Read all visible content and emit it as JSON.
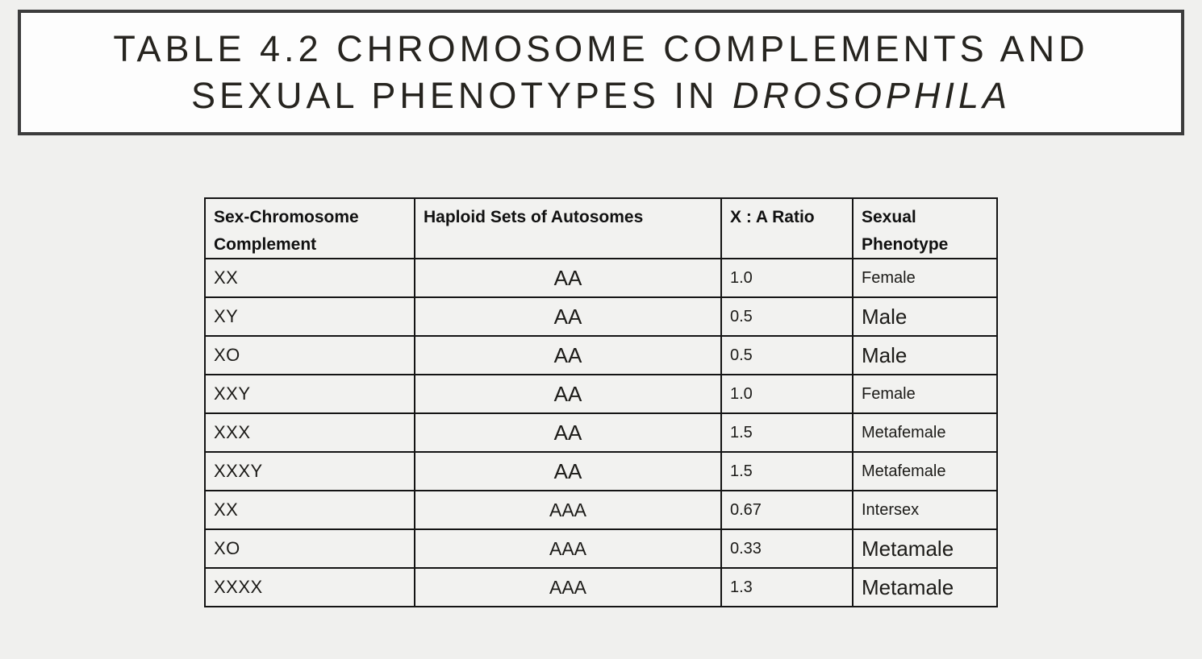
{
  "title": {
    "line1": "TABLE 4.2 CHROMOSOME COMPLEMENTS AND",
    "line2_prefix": "SEXUAL PHENOTYPES IN ",
    "line2_italic": "DROSOPHILA"
  },
  "table": {
    "headers": {
      "complement": "Sex-Chromosome Complement",
      "autosomes": "Haploid Sets of Autosomes",
      "ratio": "X : A Ratio",
      "phenotype": "Sexual Phenotype"
    },
    "rows": [
      {
        "complement": "XX",
        "autosomes": "AA",
        "ratio": "1.0",
        "phenotype": "Female"
      },
      {
        "complement": "XY",
        "autosomes": "AA",
        "ratio": "0.5",
        "phenotype": "Male"
      },
      {
        "complement": "XO",
        "autosomes": "AA",
        "ratio": "0.5",
        "phenotype": "Male"
      },
      {
        "complement": "XXY",
        "autosomes": "AA",
        "ratio": "1.0",
        "phenotype": "Female"
      },
      {
        "complement": "XXX",
        "autosomes": "AA",
        "ratio": "1.5",
        "phenotype": "Metafemale"
      },
      {
        "complement": "XXXY",
        "autosomes": "AA",
        "ratio": "1.5",
        "phenotype": "Metafemale"
      },
      {
        "complement": "XX",
        "autosomes": "AAA",
        "ratio": "0.67",
        "phenotype": "Intersex"
      },
      {
        "complement": "XO",
        "autosomes": "AAA",
        "ratio": "0.33",
        "phenotype": "Metamale"
      },
      {
        "complement": "XXXX",
        "autosomes": "AAA",
        "ratio": "1.3",
        "phenotype": "Metamale"
      }
    ]
  },
  "colors": {
    "page_background": "#f0f0ee",
    "title_box_background": "#fdfdfd",
    "title_box_border": "#3c3c3c",
    "table_border": "#141414",
    "cell_background": "#f2f2f0",
    "text": "#1c1b18"
  }
}
